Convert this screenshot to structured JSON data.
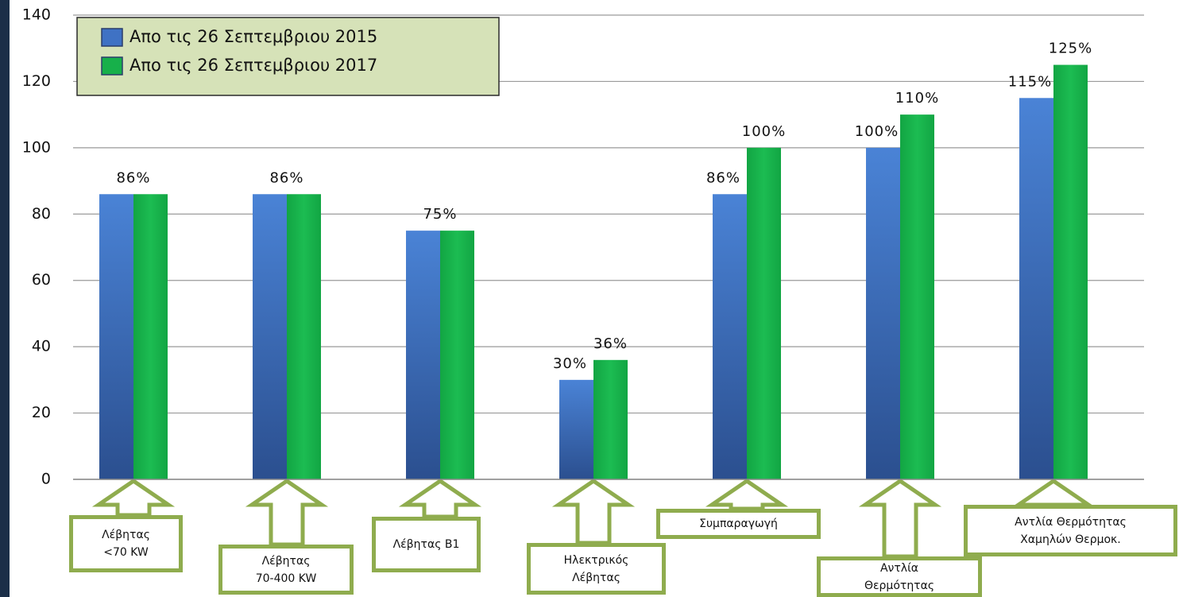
{
  "chart_data": {
    "type": "bar",
    "categories": [
      "Λέβητας\n<70 KW",
      "Λέβητας\n70-400 KW",
      "Λέβητας Β1",
      "Ηλεκτρικός\nΛέβητας",
      "Συμπαραγωγή",
      "Αντλία\nΘερμότητας",
      "Αντλία Θερμότητας\nΧαμηλών Θερμοκ."
    ],
    "series": [
      {
        "name": "Απο τις 26 Σεπτεμβριου 2015",
        "color": "#3f72c4",
        "values": [
          86,
          86,
          75,
          30,
          86,
          100,
          115
        ],
        "value_labels": [
          "86%",
          "86%",
          "75%",
          "30%",
          "86%",
          "100%",
          "115%"
        ]
      },
      {
        "name": "Απο τις 26 Σεπτεμβριου 2017",
        "color": "#17b04a",
        "values": [
          86,
          86,
          75,
          36,
          100,
          110,
          125
        ],
        "value_labels": [
          null,
          null,
          null,
          "36%",
          "100%",
          "110%",
          "125%"
        ]
      }
    ],
    "ylim": [
      0,
      140
    ],
    "yticks": [
      0,
      20,
      40,
      60,
      80,
      100,
      120,
      140
    ],
    "grid": true,
    "legend": "top-left"
  }
}
